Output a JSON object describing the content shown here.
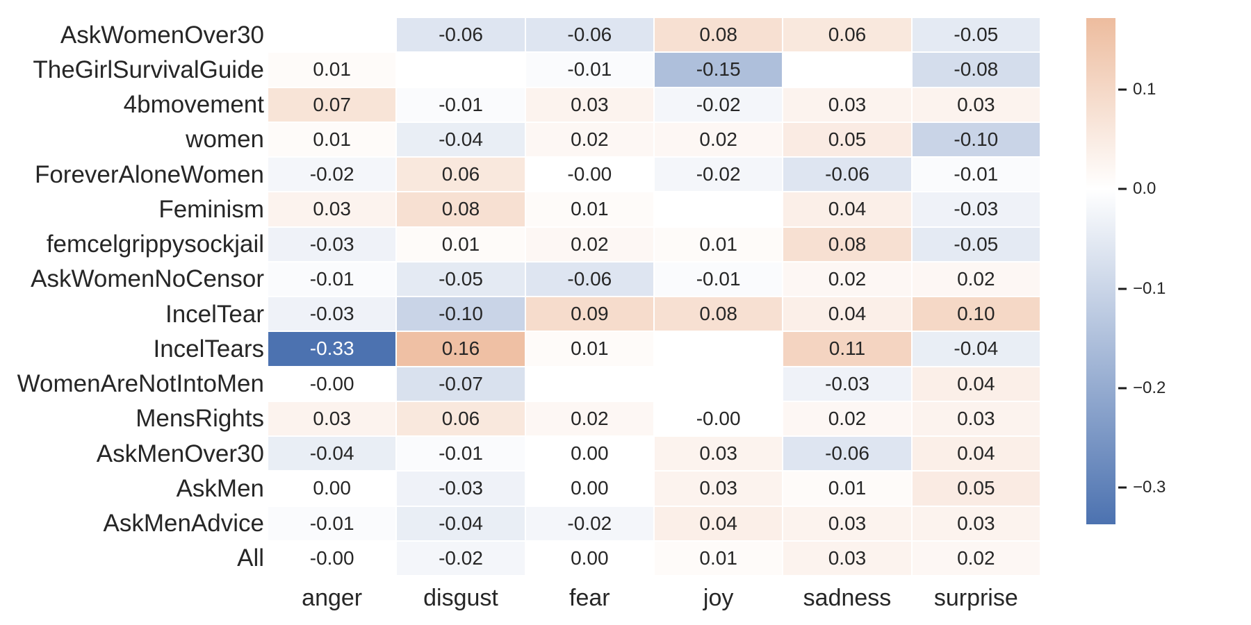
{
  "figure": {
    "background": "#ffffff"
  },
  "chart_data": {
    "type": "heatmap",
    "title": "",
    "xlabel": "",
    "ylabel": "",
    "grid": false,
    "legend_position": "right-colorbar",
    "columns": [
      "anger",
      "disgust",
      "fear",
      "joy",
      "sadness",
      "surprise"
    ],
    "rows": [
      {
        "label": "AskWomenOver30",
        "values": [
          null,
          "-0.06",
          "-0.06",
          "0.08",
          "0.06",
          "-0.05"
        ]
      },
      {
        "label": "TheGirlSurvivalGuide",
        "values": [
          "0.01",
          null,
          "-0.01",
          "-0.15",
          null,
          "-0.08"
        ]
      },
      {
        "label": "4bmovement",
        "values": [
          "0.07",
          "-0.01",
          "0.03",
          "-0.02",
          "0.03",
          "0.03"
        ]
      },
      {
        "label": "women",
        "values": [
          "0.01",
          "-0.04",
          "0.02",
          "0.02",
          "0.05",
          "-0.10"
        ]
      },
      {
        "label": "ForeverAloneWomen",
        "values": [
          "-0.02",
          "0.06",
          "-0.00",
          "-0.02",
          "-0.06",
          "-0.01"
        ]
      },
      {
        "label": "Feminism",
        "values": [
          "0.03",
          "0.08",
          "0.01",
          null,
          "0.04",
          "-0.03"
        ]
      },
      {
        "label": "femcelgrippysockjail",
        "values": [
          "-0.03",
          "0.01",
          "0.02",
          "0.01",
          "0.08",
          "-0.05"
        ]
      },
      {
        "label": "AskWomenNoCensor",
        "values": [
          "-0.01",
          "-0.05",
          "-0.06",
          "-0.01",
          "0.02",
          "0.02"
        ]
      },
      {
        "label": "IncelTear",
        "values": [
          "-0.03",
          "-0.10",
          "0.09",
          "0.08",
          "0.04",
          "0.10"
        ]
      },
      {
        "label": "IncelTears",
        "values": [
          "-0.33",
          "0.16",
          "0.01",
          null,
          "0.11",
          "-0.04"
        ]
      },
      {
        "label": "WomenAreNotIntoMen",
        "values": [
          "-0.00",
          "-0.07",
          null,
          null,
          "-0.03",
          "0.04"
        ]
      },
      {
        "label": "MensRights",
        "values": [
          "0.03",
          "0.06",
          "0.02",
          "-0.00",
          "0.02",
          "0.03"
        ]
      },
      {
        "label": "AskMenOver30",
        "values": [
          "-0.04",
          "-0.01",
          "0.00",
          "0.03",
          "-0.06",
          "0.04"
        ]
      },
      {
        "label": "AskMen",
        "values": [
          "0.00",
          "-0.03",
          "0.00",
          "0.03",
          "0.01",
          "0.05"
        ]
      },
      {
        "label": "AskMenAdvice",
        "values": [
          "-0.01",
          "-0.04",
          "-0.02",
          "0.04",
          "0.03",
          "0.03"
        ]
      },
      {
        "label": "All",
        "values": [
          "-0.00",
          "-0.02",
          "0.00",
          "0.01",
          "0.03",
          "0.02"
        ]
      }
    ],
    "colorbar": {
      "tick_labels": [
        "0.1",
        "0.0",
        "−0.1",
        "−0.2",
        "−0.3"
      ],
      "tick_values": [
        0.1,
        0.0,
        -0.1,
        -0.2,
        -0.3
      ],
      "vmin": -0.337,
      "vmax": 0.172
    },
    "colors": {
      "negative_end": "#4c72b0",
      "positive_end": "#dd7e44",
      "mid": "#ffffff",
      "color_domain": 0.33,
      "annot_dark": "#262626",
      "annot_light": "#ffffff",
      "white_text_threshold": -0.25
    }
  }
}
